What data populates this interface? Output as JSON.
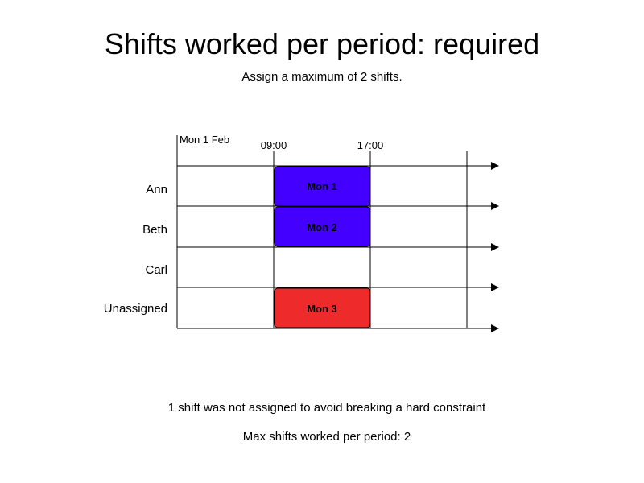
{
  "header": {
    "title": "Shifts worked per period: required",
    "subtitle": "Assign a maximum of 2 shifts."
  },
  "schedule": {
    "date_label": "Mon 1 Feb",
    "time_labels": [
      "09:00",
      "17:00"
    ],
    "rows": [
      "Ann",
      "Beth",
      "Carl",
      "Unassigned"
    ],
    "shifts": [
      {
        "label": "Mon 1",
        "row": "Ann",
        "start": "09:00",
        "end": "17:00",
        "color": "#4400ff"
      },
      {
        "label": "Mon 2",
        "row": "Beth",
        "start": "09:00",
        "end": "17:00",
        "color": "#4400ff"
      },
      {
        "label": "Mon 3",
        "row": "Unassigned",
        "start": "09:00",
        "end": "17:00",
        "color": "#ee2a2a"
      }
    ]
  },
  "footer": {
    "unassigned_note": "1 shift was not assigned to avoid breaking a hard constraint",
    "max_note": "Max shifts worked per period: 2"
  }
}
